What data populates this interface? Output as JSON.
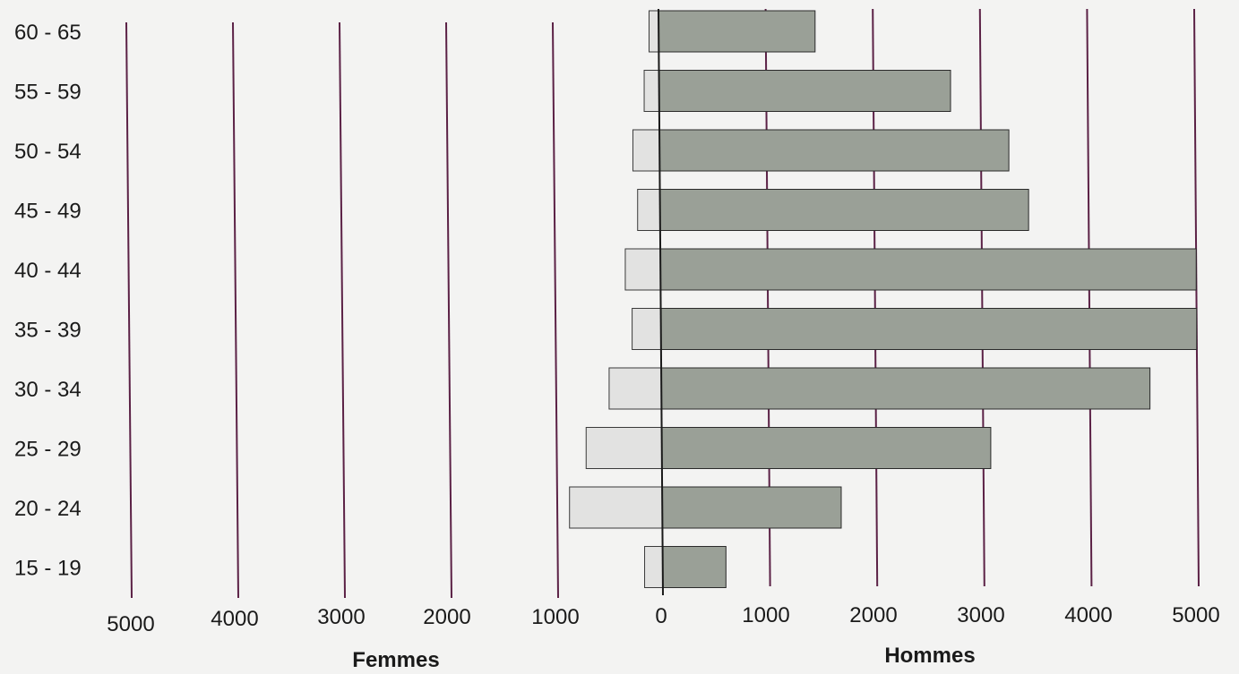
{
  "chart_data": {
    "type": "bar",
    "orientation": "horizontal",
    "categories": [
      "15 - 19",
      "20 - 24",
      "25 - 29",
      "30 - 34",
      "35 - 39",
      "40 - 44",
      "45 - 49",
      "50 - 54",
      "55 - 59",
      "60 - 65"
    ],
    "series": [
      {
        "name": "Femmes",
        "values": [
          170,
          870,
          710,
          490,
          270,
          330,
          210,
          250,
          140,
          90
        ]
      },
      {
        "name": "Hommes",
        "values": [
          590,
          1670,
          3070,
          4560,
          5000,
          5000,
          3440,
          3260,
          2720,
          1460
        ]
      }
    ],
    "xlabel_left": "Femmes",
    "xlabel_right": "Hommes",
    "left_ticks": [
      "5000",
      "4000",
      "3000",
      "2000",
      "1000",
      "0"
    ],
    "right_ticks": [
      "1000",
      "2000",
      "3000",
      "4000",
      "5000"
    ],
    "xlim": [
      0,
      5000
    ],
    "grid": true,
    "colors": {
      "femmes": "#e2e2e1",
      "hommes": "#9aa097",
      "gridline": "#5b2146",
      "axis": "#1a1a1a"
    }
  }
}
